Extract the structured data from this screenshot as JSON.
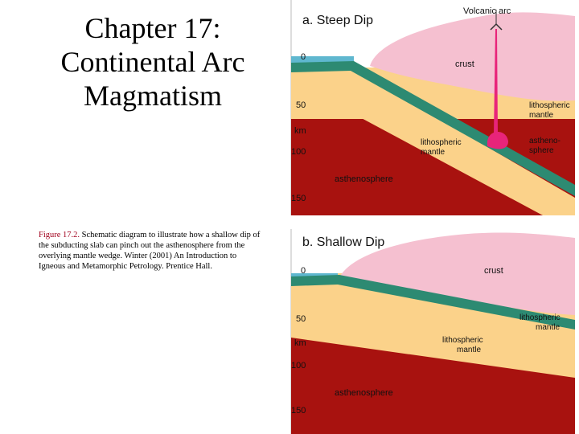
{
  "slide": {
    "title_lines": [
      "Chapter 17:",
      "Continental Arc",
      "Magmatism"
    ]
  },
  "caption": {
    "figure_label": "Figure 17.2.",
    "text": " Schematic diagram to illustrate how a shallow dip of the subducting slab can pinch out the asthenosphere from the overlying mantle wedge. Winter (2001) An Introduction to Igneous and Metamorphic Petrology. Prentice Hall."
  },
  "colors": {
    "ocean": "#5fb7cf",
    "oceanic_crust": "#2d8a72",
    "continental_crust": "#f5c0d0",
    "lithospheric_mantle": "#fbd28a",
    "asthenosphere": "#a8120f",
    "magma": "#e8247a"
  },
  "panels": [
    {
      "heading": "a.  Steep Dip",
      "volcano_label": "Volcanic arc",
      "depth_ticks": [
        "0",
        "50",
        "100",
        "150"
      ],
      "depth_unit": "km",
      "labels": {
        "crust": "crust",
        "lithospheric_mantle_right": "lithospheric\nmantle",
        "asthenosphere_right": "astheno-\nsphere",
        "slab_lithospheric_mantle": "lithospheric\nmantle",
        "asthenosphere_bottom": "asthenosphere"
      }
    },
    {
      "heading": "b.  Shallow Dip",
      "depth_ticks": [
        "0",
        "50",
        "100",
        "150"
      ],
      "depth_unit": "km",
      "labels": {
        "crust": "crust",
        "lithospheric_mantle_right": "lithospheric\nmantle",
        "slab_lithospheric_mantle": "lithospheric\nmantle",
        "asthenosphere_bottom": "asthenosphere"
      }
    }
  ]
}
